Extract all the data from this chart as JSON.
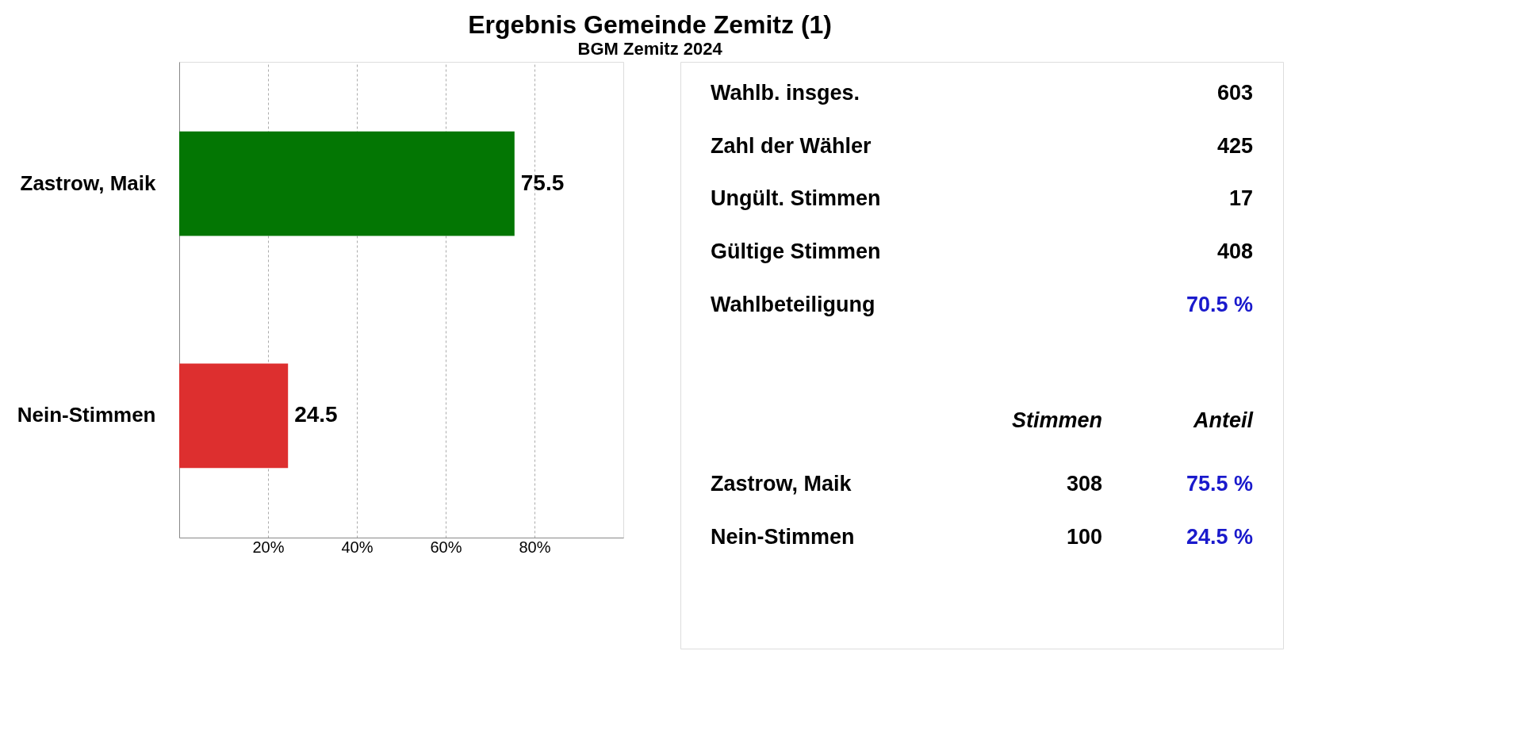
{
  "chart_data": [
    {
      "type": "bar",
      "title": "Ergebnis Gemeinde Zemitz (1)",
      "subtitle": "BGM Zemitz 2024",
      "orientation": "horizontal",
      "categories": [
        "Zastrow, Maik",
        "Nein-Stimmen"
      ],
      "values": [
        75.5,
        24.5
      ],
      "colors": [
        "#037603",
        "#dd2f2f"
      ],
      "xlim": [
        0,
        100
      ],
      "xticks": [
        {
          "value": 20,
          "label": "20%"
        },
        {
          "value": 40,
          "label": "40%"
        },
        {
          "value": 60,
          "label": "60%"
        },
        {
          "value": 80,
          "label": "80%"
        }
      ],
      "grid": "x",
      "data_labels": true
    },
    {
      "type": "other",
      "annotations": [
        "Wahlb. insges.",
        "603",
        "Zahl der Wähler",
        "425",
        "Ungült. Stimmen",
        "17",
        "Gültige Stimmen",
        "408",
        "Wahlbeteiligung",
        "70.5 %",
        "Stimmen",
        "Anteil",
        "Zastrow, Maik",
        "308",
        "75.5 %",
        "Nein-Stimmen",
        "100",
        "24.5 %"
      ],
      "colors": [
        "#000000",
        "#000000",
        "#000000",
        "#000000",
        "#000000",
        "#000000",
        "#000000",
        "#000000",
        "#000000",
        "#1a1acc",
        "#000000",
        "#000000",
        "#000000",
        "#000000",
        "#1a1acc",
        "#000000",
        "#000000",
        "#1a1acc"
      ]
    }
  ]
}
